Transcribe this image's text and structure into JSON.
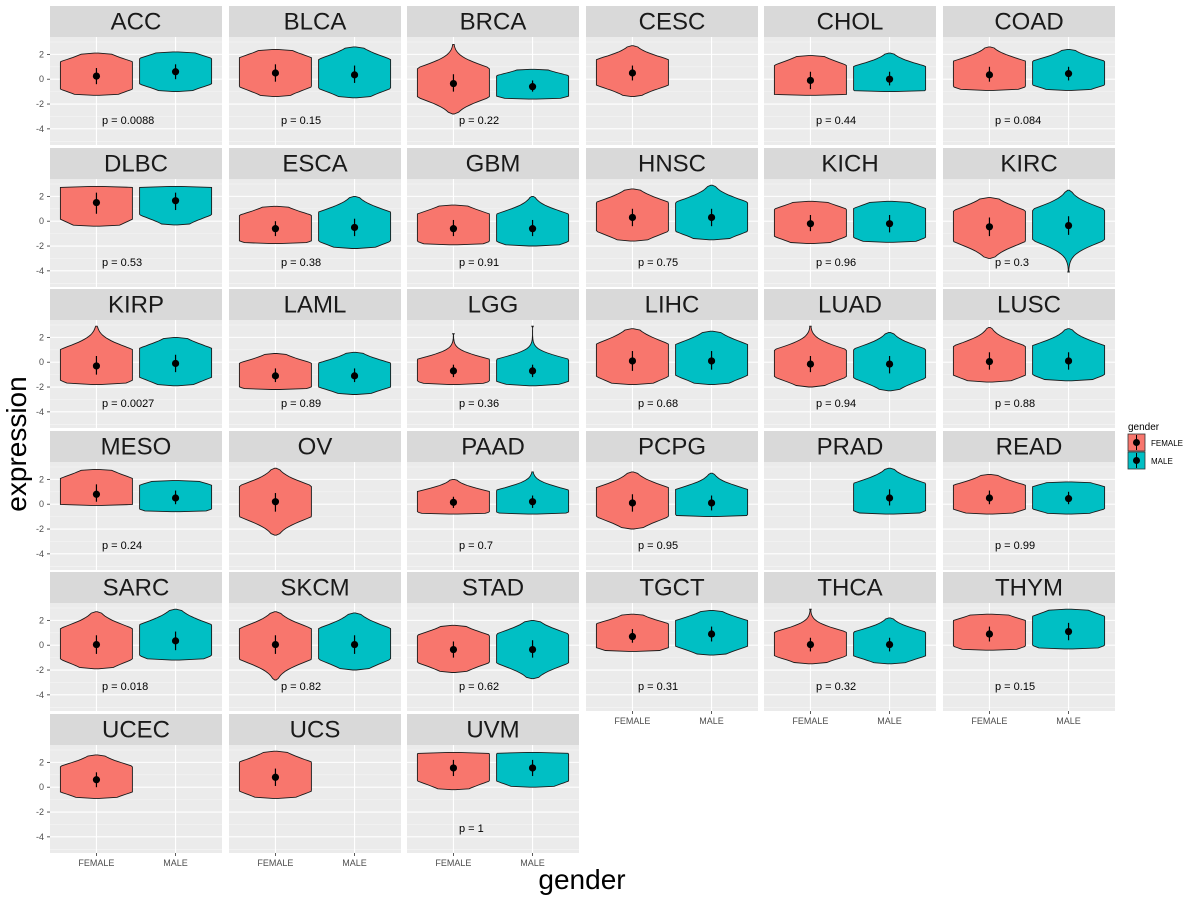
{
  "chart_data": {
    "type": "violin",
    "facet_layout": "wrap",
    "xlabel": "gender",
    "ylabel": "expression",
    "categories": [
      "FEMALE",
      "MALE"
    ],
    "y_ticks": [
      2,
      0,
      -2,
      -4
    ],
    "ylim": [
      -5.3,
      3.4
    ],
    "legend": {
      "title": "gender",
      "position": "right",
      "entries": [
        {
          "label": "FEMALE",
          "color": "#F8766D"
        },
        {
          "label": "MALE",
          "color": "#00BFC4"
        }
      ]
    },
    "panels": [
      {
        "name": "ACC",
        "p": "p = 0.0088",
        "female": {
          "median": 0.25,
          "lo": -1.3,
          "hi": 2.1,
          "q1": -0.4,
          "q3": 0.9
        },
        "male": {
          "median": 0.6,
          "lo": -1.0,
          "hi": 2.2,
          "q1": 0.0,
          "q3": 1.2
        }
      },
      {
        "name": "BLCA",
        "p": "p = 0.15",
        "female": {
          "median": 0.5,
          "lo": -1.4,
          "hi": 2.4,
          "q1": -0.2,
          "q3": 1.2
        },
        "male": {
          "median": 0.35,
          "lo": -1.5,
          "hi": 2.6,
          "q1": -0.3,
          "q3": 1.1
        }
      },
      {
        "name": "BRCA",
        "p": "p = 0.22",
        "female": {
          "median": -0.35,
          "lo": -2.8,
          "hi": 2.8,
          "q1": -1.0,
          "q3": 0.4
        },
        "male": {
          "median": -0.6,
          "lo": -1.6,
          "hi": 0.8,
          "q1": -1.0,
          "q3": -0.1
        }
      },
      {
        "name": "CESC",
        "p": "",
        "female": {
          "median": 0.5,
          "lo": -1.4,
          "hi": 2.7,
          "q1": -0.1,
          "q3": 1.1
        }
      },
      {
        "name": "CHOL",
        "p": "p = 0.44",
        "female": {
          "median": -0.1,
          "lo": -1.3,
          "hi": 1.9,
          "q1": -0.8,
          "q3": 0.6
        },
        "male": {
          "median": 0.0,
          "lo": -1.0,
          "hi": 2.1,
          "q1": -0.5,
          "q3": 0.6
        }
      },
      {
        "name": "COAD",
        "p": "p = 0.084",
        "female": {
          "median": 0.35,
          "lo": -0.9,
          "hi": 2.6,
          "q1": -0.2,
          "q3": 1.0
        },
        "male": {
          "median": 0.45,
          "lo": -0.9,
          "hi": 2.4,
          "q1": -0.1,
          "q3": 1.0
        }
      },
      {
        "name": "DLBC",
        "p": "p = 0.53",
        "female": {
          "median": 1.5,
          "lo": -0.4,
          "hi": 2.8,
          "q1": 0.6,
          "q3": 2.3
        },
        "male": {
          "median": 1.65,
          "lo": -0.3,
          "hi": 2.8,
          "q1": 0.9,
          "q3": 2.3
        }
      },
      {
        "name": "ESCA",
        "p": "p = 0.38",
        "female": {
          "median": -0.6,
          "lo": -1.8,
          "hi": 1.2,
          "q1": -1.2,
          "q3": 0.0
        },
        "male": {
          "median": -0.5,
          "lo": -2.2,
          "hi": 2.0,
          "q1": -1.2,
          "q3": 0.2
        }
      },
      {
        "name": "GBM",
        "p": "p = 0.91",
        "female": {
          "median": -0.6,
          "lo": -1.9,
          "hi": 1.3,
          "q1": -1.2,
          "q3": 0.1
        },
        "male": {
          "median": -0.6,
          "lo": -2.0,
          "hi": 2.0,
          "q1": -1.2,
          "q3": 0.1
        }
      },
      {
        "name": "HNSC",
        "p": "p = 0.75",
        "female": {
          "median": 0.3,
          "lo": -1.6,
          "hi": 2.6,
          "q1": -0.4,
          "q3": 1.0
        },
        "male": {
          "median": 0.3,
          "lo": -1.5,
          "hi": 2.9,
          "q1": -0.4,
          "q3": 1.0
        }
      },
      {
        "name": "KICH",
        "p": "p = 0.96",
        "female": {
          "median": -0.2,
          "lo": -1.8,
          "hi": 1.6,
          "q1": -0.8,
          "q3": 0.5
        },
        "male": {
          "median": -0.2,
          "lo": -1.7,
          "hi": 1.6,
          "q1": -0.9,
          "q3": 0.5
        }
      },
      {
        "name": "KIRC",
        "p": "p = 0.3",
        "female": {
          "median": -0.45,
          "lo": -3.0,
          "hi": 1.9,
          "q1": -1.2,
          "q3": 0.3
        },
        "male": {
          "median": -0.35,
          "lo": -4.1,
          "hi": 2.5,
          "q1": -1.1,
          "q3": 0.4
        }
      },
      {
        "name": "KIRP",
        "p": "p = 0.0027",
        "female": {
          "median": -0.3,
          "lo": -1.8,
          "hi": 2.9,
          "q1": -1.0,
          "q3": 0.5
        },
        "male": {
          "median": -0.1,
          "lo": -1.9,
          "hi": 2.0,
          "q1": -0.8,
          "q3": 0.6
        }
      },
      {
        "name": "LAML",
        "p": "p = 0.89",
        "female": {
          "median": -1.1,
          "lo": -2.2,
          "hi": 0.7,
          "q1": -1.6,
          "q3": -0.5
        },
        "male": {
          "median": -1.1,
          "lo": -2.6,
          "hi": 0.8,
          "q1": -1.6,
          "q3": -0.5
        }
      },
      {
        "name": "LGG",
        "p": "p = 0.36",
        "female": {
          "median": -0.7,
          "lo": -1.8,
          "hi": 2.3,
          "q1": -1.2,
          "q3": -0.2
        },
        "male": {
          "median": -0.7,
          "lo": -1.9,
          "hi": 2.9,
          "q1": -1.2,
          "q3": -0.2
        }
      },
      {
        "name": "LIHC",
        "p": "p = 0.68",
        "female": {
          "median": 0.1,
          "lo": -1.8,
          "hi": 2.7,
          "q1": -0.7,
          "q3": 0.9
        },
        "male": {
          "median": 0.1,
          "lo": -1.8,
          "hi": 2.5,
          "q1": -0.6,
          "q3": 0.9
        }
      },
      {
        "name": "LUAD",
        "p": "p = 0.94",
        "female": {
          "median": -0.15,
          "lo": -2.0,
          "hi": 2.9,
          "q1": -0.8,
          "q3": 0.5
        },
        "male": {
          "median": -0.15,
          "lo": -2.3,
          "hi": 2.4,
          "q1": -0.9,
          "q3": 0.5
        }
      },
      {
        "name": "LUSC",
        "p": "p = 0.88",
        "female": {
          "median": 0.05,
          "lo": -1.6,
          "hi": 2.8,
          "q1": -0.6,
          "q3": 0.8
        },
        "male": {
          "median": 0.1,
          "lo": -1.5,
          "hi": 2.7,
          "q1": -0.6,
          "q3": 0.8
        }
      },
      {
        "name": "MESO",
        "p": "p = 0.24",
        "female": {
          "median": 0.8,
          "lo": -0.1,
          "hi": 2.8,
          "q1": 0.2,
          "q3": 1.6
        },
        "male": {
          "median": 0.5,
          "lo": -0.6,
          "hi": 1.9,
          "q1": 0.0,
          "q3": 1.1
        }
      },
      {
        "name": "OV",
        "p": "",
        "female": {
          "median": 0.2,
          "lo": -2.5,
          "hi": 2.9,
          "q1": -0.6,
          "q3": 0.9
        }
      },
      {
        "name": "PAAD",
        "p": "p = 0.7",
        "female": {
          "median": 0.15,
          "lo": -0.8,
          "hi": 2.0,
          "q1": -0.3,
          "q3": 0.6
        },
        "male": {
          "median": 0.2,
          "lo": -0.8,
          "hi": 2.6,
          "q1": -0.3,
          "q3": 0.7
        }
      },
      {
        "name": "PCPG",
        "p": "p = 0.95",
        "female": {
          "median": 0.1,
          "lo": -2.0,
          "hi": 2.6,
          "q1": -0.6,
          "q3": 0.8
        },
        "male": {
          "median": 0.1,
          "lo": -1.0,
          "hi": 2.5,
          "q1": -0.5,
          "q3": 0.7
        }
      },
      {
        "name": "PRAD",
        "p": "",
        "male": {
          "median": 0.5,
          "lo": -0.8,
          "hi": 2.9,
          "q1": -0.1,
          "q3": 1.2
        }
      },
      {
        "name": "READ",
        "p": "p = 0.99",
        "female": {
          "median": 0.5,
          "lo": -0.8,
          "hi": 2.4,
          "q1": 0.0,
          "q3": 1.1
        },
        "male": {
          "median": 0.45,
          "lo": -0.8,
          "hi": 1.8,
          "q1": 0.0,
          "q3": 1.0
        }
      },
      {
        "name": "SARC",
        "p": "p = 0.018",
        "female": {
          "median": 0.05,
          "lo": -1.9,
          "hi": 2.7,
          "q1": -0.7,
          "q3": 0.8
        },
        "male": {
          "median": 0.35,
          "lo": -1.2,
          "hi": 2.9,
          "q1": -0.4,
          "q3": 1.1
        }
      },
      {
        "name": "SKCM",
        "p": "p = 0.82",
        "female": {
          "median": 0.05,
          "lo": -2.8,
          "hi": 2.7,
          "q1": -0.7,
          "q3": 0.8
        },
        "male": {
          "median": 0.05,
          "lo": -2.0,
          "hi": 2.6,
          "q1": -0.7,
          "q3": 0.8
        }
      },
      {
        "name": "STAD",
        "p": "p = 0.62",
        "female": {
          "median": -0.35,
          "lo": -2.2,
          "hi": 1.6,
          "q1": -1.0,
          "q3": 0.3
        },
        "male": {
          "median": -0.35,
          "lo": -2.7,
          "hi": 2.0,
          "q1": -1.0,
          "q3": 0.4
        }
      },
      {
        "name": "TGCT",
        "p": "p = 0.31",
        "female": {
          "median": 0.7,
          "lo": -0.5,
          "hi": 2.5,
          "q1": 0.2,
          "q3": 1.3
        },
        "male": {
          "median": 0.9,
          "lo": -0.8,
          "hi": 2.8,
          "q1": 0.3,
          "q3": 1.5
        }
      },
      {
        "name": "THCA",
        "p": "p = 0.32",
        "female": {
          "median": 0.05,
          "lo": -1.5,
          "hi": 2.9,
          "q1": -0.5,
          "q3": 0.6
        },
        "male": {
          "median": 0.05,
          "lo": -1.5,
          "hi": 2.2,
          "q1": -0.5,
          "q3": 0.6
        }
      },
      {
        "name": "THYM",
        "p": "p = 0.15",
        "female": {
          "median": 0.9,
          "lo": -0.4,
          "hi": 2.5,
          "q1": 0.3,
          "q3": 1.5
        },
        "male": {
          "median": 1.1,
          "lo": -0.3,
          "hi": 2.9,
          "q1": 0.4,
          "q3": 1.8
        }
      },
      {
        "name": "UCEC",
        "p": "",
        "female": {
          "median": 0.6,
          "lo": -0.9,
          "hi": 2.6,
          "q1": 0.0,
          "q3": 1.2
        }
      },
      {
        "name": "UCS",
        "p": "",
        "female": {
          "median": 0.8,
          "lo": -0.9,
          "hi": 2.9,
          "q1": 0.1,
          "q3": 1.5
        }
      },
      {
        "name": "UVM",
        "p": "p = 1",
        "female": {
          "median": 1.55,
          "lo": -0.2,
          "hi": 2.8,
          "q1": 0.9,
          "q3": 2.2
        },
        "male": {
          "median": 1.55,
          "lo": 0.0,
          "hi": 2.8,
          "q1": 0.9,
          "q3": 2.2
        }
      }
    ]
  }
}
